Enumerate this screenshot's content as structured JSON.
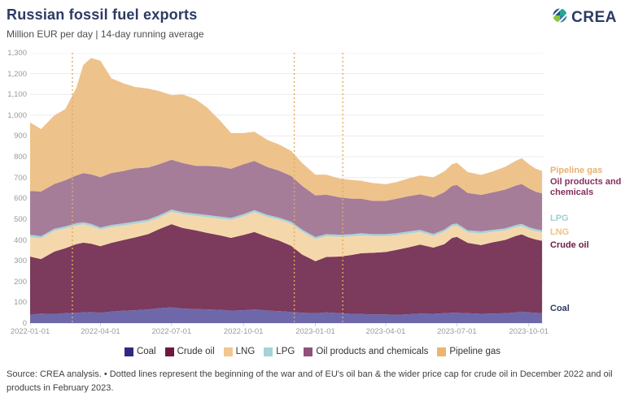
{
  "header": {
    "title": "Russian fossil fuel exports",
    "subtitle": "Million EUR per day | 14-day running average",
    "logo_text": "CREA"
  },
  "chart_data": {
    "type": "area",
    "stacked": true,
    "title": "Russian fossil fuel exports",
    "subtitle": "Million EUR per day | 14-day running average",
    "ylabel": "Million EUR per day",
    "ylim": [
      0,
      1300
    ],
    "y_tick_step": 100,
    "y_ticks": [
      0,
      100,
      200,
      300,
      400,
      500,
      600,
      700,
      800,
      900,
      1000,
      1100,
      1200,
      1300
    ],
    "grid": "horizontal",
    "legend_position": "bottom",
    "x_domain_days": 657,
    "x_ticks": [
      {
        "label": "2022-01-01",
        "day": 0
      },
      {
        "label": "2022-04-01",
        "day": 90
      },
      {
        "label": "2022-07-01",
        "day": 181
      },
      {
        "label": "2022-10-01",
        "day": 273
      },
      {
        "label": "2023-01-01",
        "day": 365
      },
      {
        "label": "2023-04-01",
        "day": 455
      },
      {
        "label": "2023-07-01",
        "day": 546
      },
      {
        "label": "2023-10-01",
        "day": 638
      }
    ],
    "days": [
      0,
      14,
      31,
      45,
      59,
      68,
      78,
      90,
      104,
      120,
      134,
      151,
      165,
      181,
      195,
      212,
      226,
      243,
      257,
      273,
      287,
      304,
      318,
      334,
      348,
      365,
      379,
      396,
      410,
      424,
      438,
      455,
      469,
      485,
      499,
      516,
      530,
      540,
      546,
      560,
      577,
      591,
      608,
      622,
      629,
      638,
      647,
      655
    ],
    "series": [
      {
        "name": "Coal",
        "area_color": "#6e68ab",
        "legend_color": "#2f2a7e",
        "values": [
          40,
          46,
          44,
          48,
          50,
          52,
          54,
          50,
          56,
          60,
          62,
          66,
          72,
          76,
          70,
          68,
          66,
          64,
          60,
          62,
          66,
          60,
          58,
          54,
          50,
          48,
          52,
          48,
          45,
          44,
          42,
          42,
          40,
          43,
          46,
          45,
          48,
          50,
          50,
          48,
          45,
          46,
          48,
          52,
          55,
          52,
          50,
          48
        ]
      },
      {
        "name": "Crude oil",
        "area_color": "#7c3a5c",
        "legend_color": "#6d1a42",
        "values": [
          280,
          262,
          300,
          312,
          330,
          335,
          328,
          320,
          330,
          340,
          350,
          362,
          380,
          400,
          388,
          378,
          368,
          358,
          350,
          362,
          372,
          354,
          340,
          318,
          280,
          250,
          266,
          272,
          282,
          292,
          296,
          300,
          312,
          322,
          332,
          318,
          332,
          360,
          365,
          338,
          330,
          342,
          352,
          368,
          372,
          360,
          352,
          348
        ]
      },
      {
        "name": "LNG",
        "area_color": "#f4d8ab",
        "legend_color": "#f1c78e",
        "values": [
          95,
          100,
          100,
          95,
          90,
          88,
          85,
          80,
          76,
          70,
          66,
          60,
          56,
          60,
          66,
          70,
          76,
          80,
          86,
          90,
          96,
          96,
          100,
          106,
          110,
          106,
          100,
          95,
          90,
          86,
          80,
          76,
          70,
          66,
          60,
          56,
          60,
          56,
          54,
          50,
          56,
          50,
          46,
          42,
          40,
          40,
          40,
          40
        ]
      },
      {
        "name": "LPG",
        "area_color": "#a9d2d9",
        "legend_color": "#a5d3da",
        "values": [
          10,
          10,
          10,
          10,
          10,
          10,
          10,
          10,
          10,
          10,
          10,
          10,
          10,
          10,
          10,
          10,
          10,
          10,
          10,
          10,
          10,
          10,
          10,
          10,
          10,
          10,
          10,
          10,
          10,
          10,
          10,
          10,
          10,
          10,
          10,
          10,
          10,
          10,
          10,
          10,
          10,
          10,
          10,
          10,
          10,
          10,
          10,
          10
        ]
      },
      {
        "name": "Oil products and chemicals",
        "area_color": "#a57d99",
        "legend_color": "#91517a",
        "values": [
          210,
          215,
          215,
          222,
          230,
          236,
          238,
          242,
          250,
          252,
          256,
          250,
          246,
          240,
          236,
          230,
          236,
          240,
          236,
          240,
          236,
          230,
          226,
          220,
          210,
          200,
          190,
          180,
          172,
          166,
          160,
          160,
          166,
          170,
          172,
          176,
          180,
          184,
          186,
          180,
          176,
          180,
          186,
          190,
          192,
          186,
          180,
          178
        ]
      },
      {
        "name": "Pipeline gas",
        "area_color": "#eec28b",
        "legend_color": "#edb46e",
        "values": [
          330,
          300,
          330,
          342,
          420,
          520,
          560,
          560,
          455,
          420,
          392,
          380,
          352,
          310,
          330,
          320,
          282,
          222,
          172,
          150,
          140,
          130,
          126,
          120,
          110,
          100,
          96,
          90,
          90,
          86,
          86,
          80,
          80,
          86,
          90,
          96,
          100,
          104,
          106,
          100,
          96,
          100,
          110,
          120,
          124,
          116,
          110,
          108
        ]
      }
    ],
    "event_lines": [
      {
        "day": 54,
        "description": "beginning of the war"
      },
      {
        "day": 338,
        "description": "EU's oil ban & the wider price cap for crude oil in December 2022"
      },
      {
        "day": 400,
        "description": "oil products ban in February 2023"
      }
    ],
    "event_line_color": "#e3a963",
    "right_labels": [
      {
        "text": "Pipeline gas",
        "color": "#e8b072",
        "top": 204
      },
      {
        "text": "Oil products and chemicals",
        "color": "#83305c",
        "top": 218
      },
      {
        "text": "LPG",
        "color": "#9fcfd8",
        "top": 263
      },
      {
        "text": "LNG",
        "color": "#f0c184",
        "top": 280
      },
      {
        "text": "Crude oil",
        "color": "#6d1a42",
        "top": 296
      },
      {
        "text": "Coal",
        "color": "#2d3a64",
        "top": 374
      }
    ]
  },
  "footer": {
    "source_note": "Source: CREA analysis. • Dotted lines represent the beginning of the war and of EU's oil ban & the wider price cap for crude oil in December 2022 and oil products in February 2023."
  }
}
